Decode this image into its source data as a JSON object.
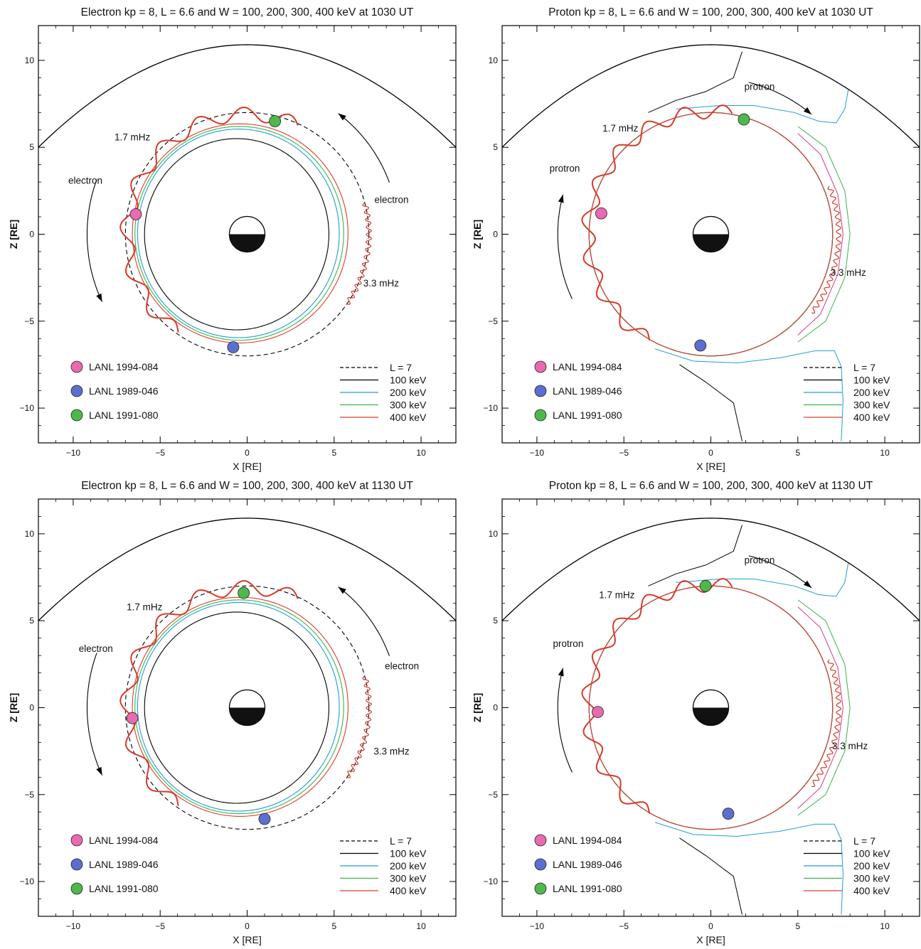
{
  "figure": {
    "panel_count": 4
  },
  "chart_data": [
    {
      "type": "line",
      "title": "Electron kp = 8, L = 6.6 and W = 100, 200, 300, 400 keV at 1030 UT",
      "xlabel": "X [RE]",
      "ylabel": "Z [RE]",
      "xlim": [
        -12,
        12
      ],
      "ylim": [
        -12,
        12
      ],
      "xticks": [
        -10,
        -5,
        0,
        5,
        10
      ],
      "yticks": [
        -10,
        -5,
        0,
        5,
        10
      ],
      "grid": false,
      "legend_position": "bottom-right",
      "species": "electron",
      "magnetopause": {
        "nose_z": 10.9,
        "edge_z": 5
      },
      "series": [
        {
          "name": "L = 7",
          "style": "dashed",
          "color": "#000000",
          "center": [
            0,
            0
          ],
          "rx": 7,
          "ry": 7
        },
        {
          "name": "100 keV",
          "style": "solid",
          "color": "#000000",
          "center": [
            -0.6,
            0
          ],
          "rx": 5.3,
          "ry": 5.5
        },
        {
          "name": "200 keV",
          "style": "solid",
          "color": "#1f9fd6",
          "center": [
            -0.5,
            0.05
          ],
          "rx": 5.8,
          "ry": 6.0
        },
        {
          "name": "300 keV",
          "style": "solid",
          "color": "#3ab54a",
          "center": [
            -0.45,
            0.05
          ],
          "rx": 6.0,
          "ry": 6.15
        },
        {
          "name": "400 keV",
          "style": "solid",
          "color": "#e03a2f",
          "center": [
            -0.4,
            0.05
          ],
          "rx": 6.2,
          "ry": 6.3
        }
      ],
      "wave_labels": [
        {
          "text": "1.7 mHz",
          "x": -6.6,
          "y": 5.4
        },
        {
          "text": "3.3 mHz",
          "x": 7.7,
          "y": -3.0
        }
      ],
      "waves": [
        {
          "label": "1.7 mHz",
          "theta_range": [
            65,
            235
          ],
          "radius": 6.9,
          "amplitude": 0.4,
          "cycles": 8
        },
        {
          "label": "3.3 mHz",
          "theta_range": [
            -35,
            15
          ],
          "radius": 7.0,
          "amplitude": 0.15,
          "cycles": 14
        }
      ],
      "arrows": [
        {
          "label": "electron",
          "theta_range": [
            160,
            205
          ],
          "radius": 9.2,
          "direction": "ccw"
        },
        {
          "label": "electron",
          "theta_range": [
            20,
            53
          ],
          "radius": 8.7,
          "direction": "ccw"
        }
      ],
      "arrow_labels": [
        {
          "text": "electron",
          "x": -9.3,
          "y": 2.9
        },
        {
          "text": "electron",
          "x": 8.3,
          "y": 1.8
        }
      ],
      "satellites": [
        {
          "name": "LANL 1994-084",
          "color": "#e86aaf",
          "x": -6.4,
          "z": 1.15
        },
        {
          "name": "LANL 1989-046",
          "color": "#5b6fd1",
          "x": -0.8,
          "z": -6.5
        },
        {
          "name": "LANL 1991-080",
          "color": "#4fb84a",
          "x": 1.6,
          "z": 6.5
        }
      ]
    },
    {
      "type": "line",
      "title": "Proton kp = 8, L = 6.6 and W = 100, 200, 300, 400 keV at 1030 UT",
      "xlabel": "X [RE]",
      "ylabel": "Z [RE]",
      "xlim": [
        -12,
        12
      ],
      "ylim": [
        -12,
        12
      ],
      "xticks": [
        -10,
        -5,
        0,
        5,
        10
      ],
      "yticks": [
        -10,
        -5,
        0,
        5,
        10
      ],
      "grid": false,
      "legend_position": "bottom-right",
      "species": "proton",
      "magnetopause": {
        "nose_z": 10.9,
        "edge_z": 5
      },
      "series": [
        {
          "name": "L = 7",
          "style": "dashed",
          "color": "#000000",
          "center": [
            0,
            0
          ],
          "rx": 7,
          "ry": 7
        },
        {
          "name": "100 keV",
          "style": "solid",
          "color": "#000000",
          "center": [
            0,
            0
          ],
          "rx": 7,
          "ry": 7
        },
        {
          "name": "200 keV",
          "style": "solid",
          "color": "#1f9fd6",
          "center": [
            0,
            0
          ],
          "rx": 7,
          "ry": 7
        },
        {
          "name": "300 keV",
          "style": "solid",
          "color": "#3ab54a",
          "center": [
            0,
            0
          ],
          "rx": 7,
          "ry": 7
        },
        {
          "name": "400 keV",
          "style": "solid",
          "color": "#e03a2f",
          "center": [
            0,
            0
          ],
          "rx": 7,
          "ry": 7
        }
      ],
      "wave_labels": [
        {
          "text": "1.7 mHz",
          "x": -5.2,
          "y": 5.9
        },
        {
          "text": "3.3 mHz",
          "x": 7.9,
          "y": -2.4
        }
      ],
      "waves": [
        {
          "label": "1.7 mHz",
          "theta_range": [
            80,
            240
          ],
          "radius": 7.05,
          "amplitude": 0.4,
          "cycles": 9
        },
        {
          "label": "3.3 mHz",
          "theta_range": [
            -38,
            22
          ],
          "radius": 7.35,
          "amplitude": 0.13,
          "cycles": 18
        }
      ],
      "arrows": [
        {
          "label": "protron",
          "theta_range": [
            165,
            205
          ],
          "radius": 8.8,
          "direction": "cw"
        },
        {
          "label": "protron",
          "theta_range": [
            50,
            76
          ],
          "radius": 9.0,
          "direction": "cw"
        }
      ],
      "arrow_labels": [
        {
          "text": "protron",
          "x": -8.4,
          "y": 3.6
        },
        {
          "text": "protron",
          "x": 2.8,
          "y": 8.3
        }
      ],
      "satellites": [
        {
          "name": "LANL 1994-084",
          "color": "#e86aaf",
          "x": -6.3,
          "z": 1.2
        },
        {
          "name": "LANL 1989-046",
          "color": "#5b6fd1",
          "x": -0.6,
          "z": -6.4
        },
        {
          "name": "LANL 1991-080",
          "color": "#4fb84a",
          "x": 1.9,
          "z": 6.6
        }
      ]
    },
    {
      "type": "line",
      "title": "Electron kp = 8, L = 6.6 and W = 100, 200, 300, 400 keV at 1130 UT",
      "xlabel": "X [RE]",
      "ylabel": "Z [RE]",
      "xlim": [
        -12,
        12
      ],
      "ylim": [
        -12,
        12
      ],
      "xticks": [
        -10,
        -5,
        0,
        5,
        10
      ],
      "yticks": [
        -10,
        -5,
        0,
        5,
        10
      ],
      "grid": false,
      "legend_position": "bottom-right",
      "species": "electron",
      "magnetopause": {
        "nose_z": 10.9,
        "edge_z": 5
      },
      "series": [
        {
          "name": "L = 7",
          "style": "dashed",
          "color": "#000000",
          "center": [
            0,
            0
          ],
          "rx": 7,
          "ry": 7
        },
        {
          "name": "100 keV",
          "style": "solid",
          "color": "#000000",
          "center": [
            -0.6,
            0
          ],
          "rx": 5.3,
          "ry": 5.5
        },
        {
          "name": "200 keV",
          "style": "solid",
          "color": "#1f9fd6",
          "center": [
            -0.5,
            0.05
          ],
          "rx": 5.8,
          "ry": 6.0
        },
        {
          "name": "300 keV",
          "style": "solid",
          "color": "#3ab54a",
          "center": [
            -0.45,
            0.05
          ],
          "rx": 6.0,
          "ry": 6.15
        },
        {
          "name": "400 keV",
          "style": "solid",
          "color": "#e03a2f",
          "center": [
            -0.4,
            0.05
          ],
          "rx": 6.2,
          "ry": 6.3
        }
      ],
      "wave_labels": [
        {
          "text": "1.7 mHz",
          "x": -5.9,
          "y": 5.6
        },
        {
          "text": "3.3 mHz",
          "x": 8.3,
          "y": -2.7
        }
      ],
      "waves": [
        {
          "label": "1.7 mHz",
          "theta_range": [
            65,
            235
          ],
          "radius": 6.9,
          "amplitude": 0.4,
          "cycles": 8
        },
        {
          "label": "3.3 mHz",
          "theta_range": [
            -35,
            15
          ],
          "radius": 7.0,
          "amplitude": 0.15,
          "cycles": 14
        }
      ],
      "arrows": [
        {
          "label": "electron",
          "theta_range": [
            160,
            205
          ],
          "radius": 9.2,
          "direction": "ccw"
        },
        {
          "label": "electron",
          "theta_range": [
            20,
            53
          ],
          "radius": 8.7,
          "direction": "ccw"
        }
      ],
      "arrow_labels": [
        {
          "text": "electron",
          "x": -8.7,
          "y": 3.2
        },
        {
          "text": "electron",
          "x": 8.9,
          "y": 2.2
        }
      ],
      "satellites": [
        {
          "name": "LANL 1994-084",
          "color": "#e86aaf",
          "x": -6.6,
          "z": -0.6
        },
        {
          "name": "LANL 1989-046",
          "color": "#5b6fd1",
          "x": 1.0,
          "z": -6.4
        },
        {
          "name": "LANL 1991-080",
          "color": "#4fb84a",
          "x": -0.2,
          "z": 6.6
        }
      ]
    },
    {
      "type": "line",
      "title": "Proton kp = 8, L = 6.6 and W = 100, 200, 300, 400 keV at 1130 UT",
      "xlabel": "X [RE]",
      "ylabel": "Z [RE]",
      "xlim": [
        -12,
        12
      ],
      "ylim": [
        -12,
        12
      ],
      "xticks": [
        -10,
        -5,
        0,
        5,
        10
      ],
      "yticks": [
        -10,
        -5,
        0,
        5,
        10
      ],
      "grid": false,
      "legend_position": "bottom-right",
      "species": "proton",
      "magnetopause": {
        "nose_z": 10.9,
        "edge_z": 5
      },
      "series": [
        {
          "name": "L = 7",
          "style": "dashed",
          "color": "#000000",
          "center": [
            0,
            0
          ],
          "rx": 7,
          "ry": 7
        },
        {
          "name": "100 keV",
          "style": "solid",
          "color": "#000000",
          "center": [
            0,
            0
          ],
          "rx": 7,
          "ry": 7
        },
        {
          "name": "200 keV",
          "style": "solid",
          "color": "#1f9fd6",
          "center": [
            0,
            0
          ],
          "rx": 7,
          "ry": 7
        },
        {
          "name": "300 keV",
          "style": "solid",
          "color": "#3ab54a",
          "center": [
            0,
            0
          ],
          "rx": 7,
          "ry": 7
        },
        {
          "name": "400 keV",
          "style": "solid",
          "color": "#e03a2f",
          "center": [
            0,
            0
          ],
          "rx": 7,
          "ry": 7
        }
      ],
      "wave_labels": [
        {
          "text": "1.7 mHz",
          "x": -5.4,
          "y": 6.3
        },
        {
          "text": "3.3 mHz",
          "x": 8.0,
          "y": -2.4
        }
      ],
      "waves": [
        {
          "label": "1.7 mHz",
          "theta_range": [
            80,
            240
          ],
          "radius": 7.05,
          "amplitude": 0.4,
          "cycles": 9
        },
        {
          "label": "3.3 mHz",
          "theta_range": [
            -38,
            22
          ],
          "radius": 7.35,
          "amplitude": 0.13,
          "cycles": 18
        }
      ],
      "arrows": [
        {
          "label": "protron",
          "theta_range": [
            165,
            205
          ],
          "radius": 8.8,
          "direction": "cw"
        },
        {
          "label": "protron",
          "theta_range": [
            50,
            76
          ],
          "radius": 9.0,
          "direction": "cw"
        }
      ],
      "arrow_labels": [
        {
          "text": "protron",
          "x": -8.2,
          "y": 3.5
        },
        {
          "text": "protron",
          "x": 2.8,
          "y": 8.3
        }
      ],
      "satellites": [
        {
          "name": "LANL 1994-084",
          "color": "#e86aaf",
          "x": -6.5,
          "z": -0.25
        },
        {
          "name": "LANL 1989-046",
          "color": "#5b6fd1",
          "x": 1.0,
          "z": -6.1
        },
        {
          "name": "LANL 1991-080",
          "color": "#4fb84a",
          "x": -0.3,
          "z": 7.0
        }
      ]
    }
  ]
}
